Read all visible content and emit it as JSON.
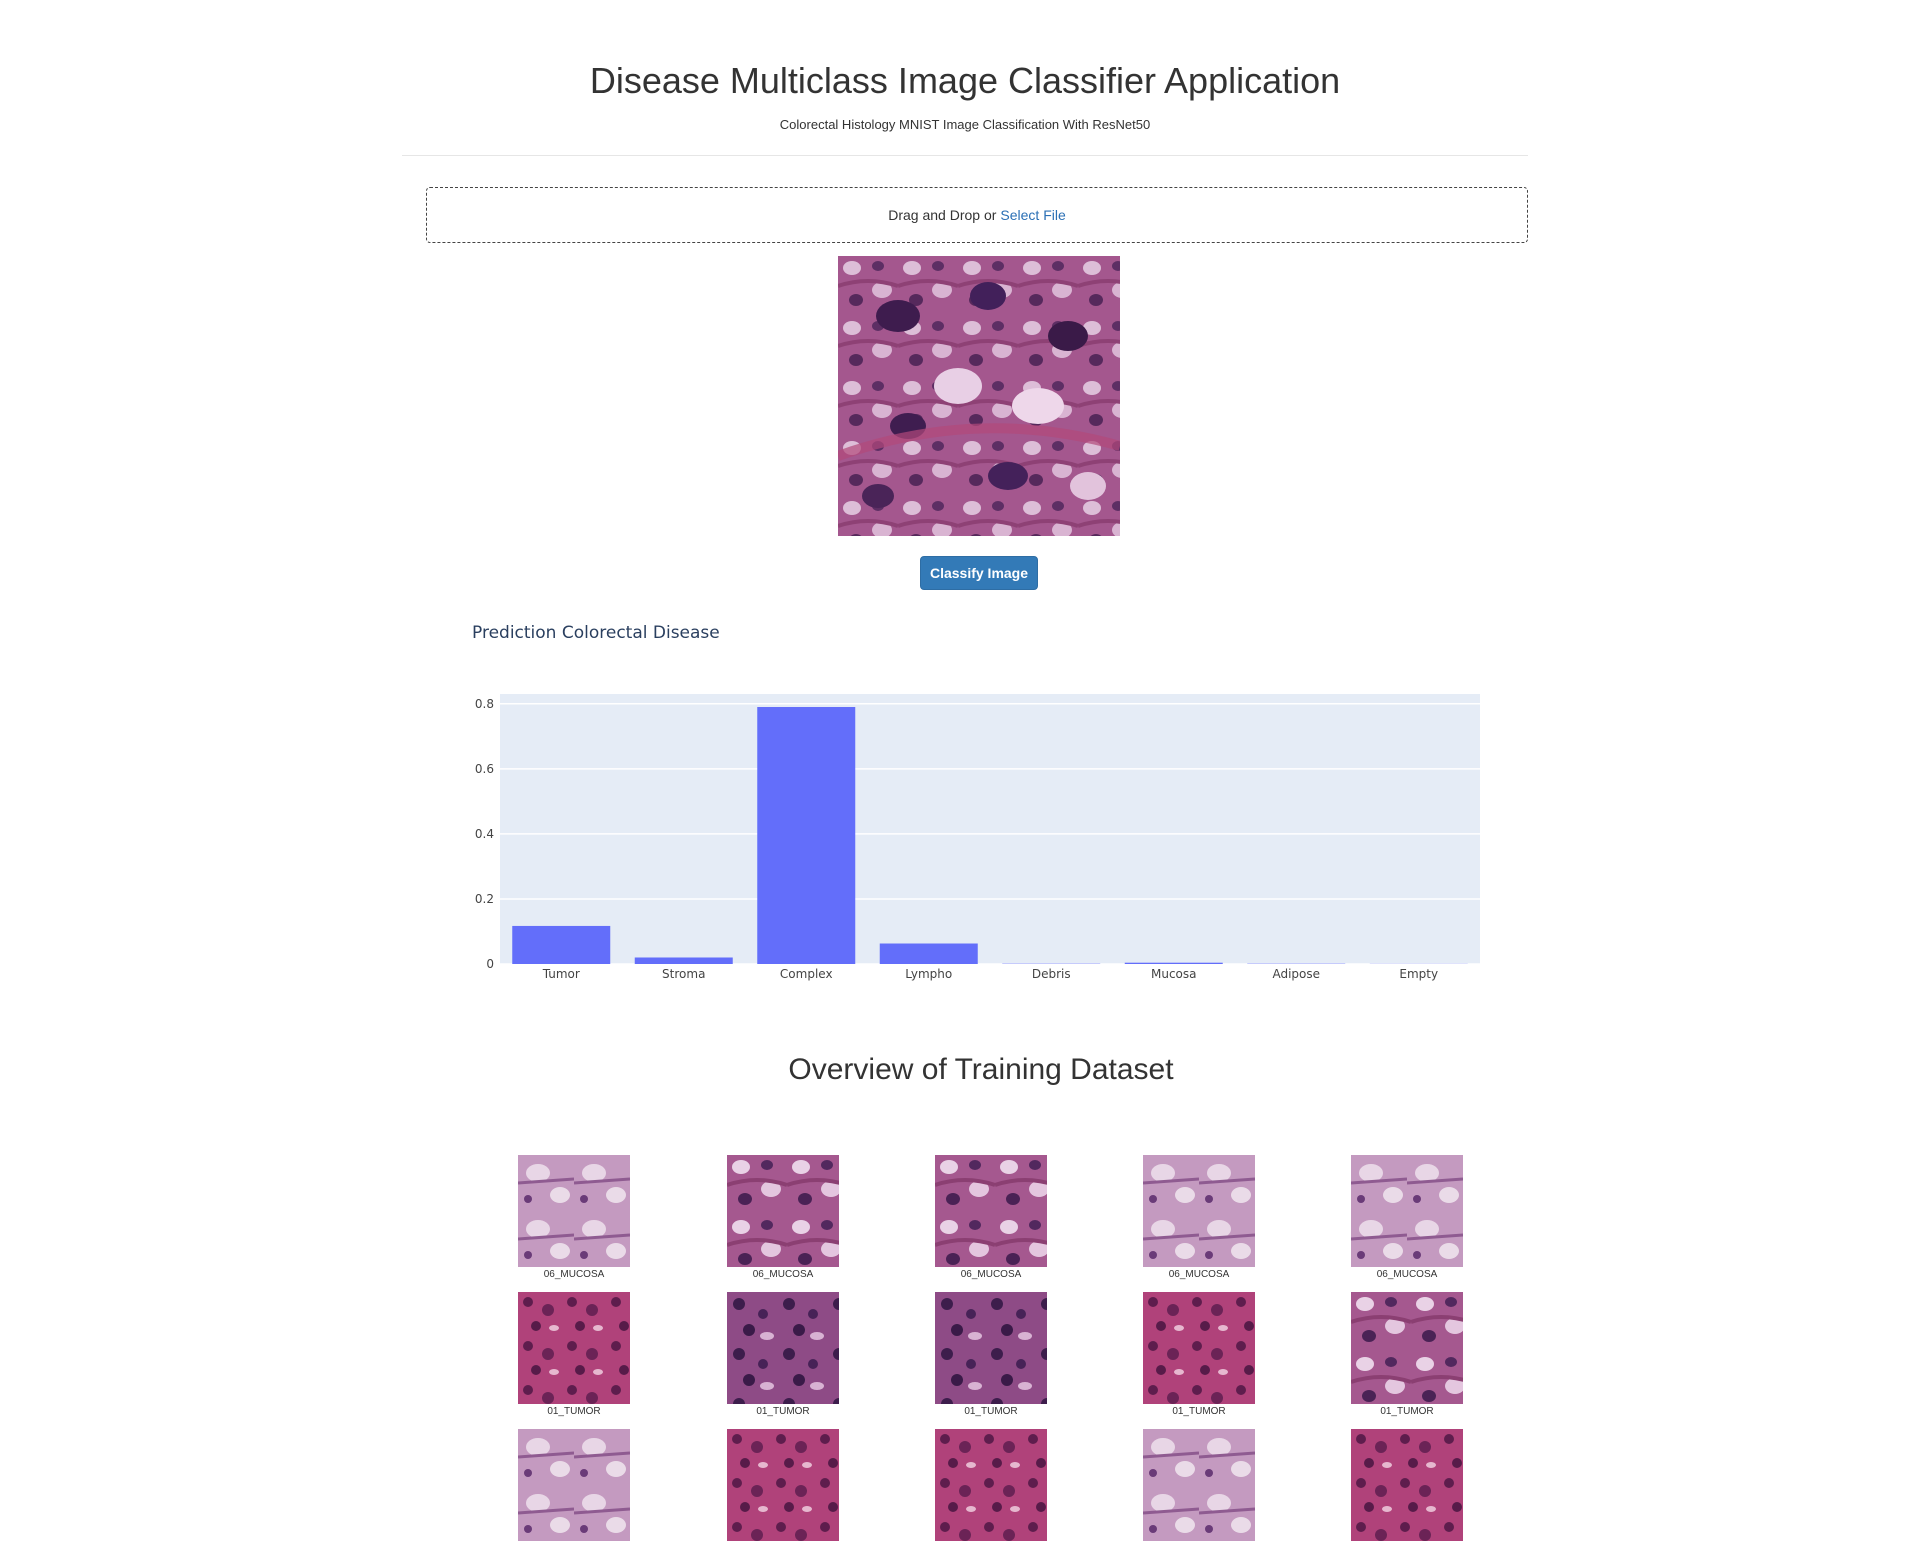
{
  "header": {
    "title": "Disease Multiclass Image Classifier Application",
    "subtitle": "Colorectal Histology MNIST Image Classification With ResNet50"
  },
  "upload": {
    "text": "Drag and Drop or",
    "link": "Select File"
  },
  "classify_button": "Classify Image",
  "prediction": {
    "title": "Prediction Colorectal Disease"
  },
  "colors": {
    "bar": "#636efa",
    "plot_bg": "#e5ecf6",
    "button": "#337ab7",
    "link": "#2a6fb5"
  },
  "chart_data": {
    "type": "bar",
    "title": "Prediction Colorectal Disease",
    "categories": [
      "Tumor",
      "Stroma",
      "Complex",
      "Lympho",
      "Debris",
      "Mucosa",
      "Adipose",
      "Empty"
    ],
    "values": [
      0.117,
      0.02,
      0.79,
      0.063,
      0.001,
      0.004,
      0.001,
      0.0005
    ],
    "ylim": [
      0,
      0.83
    ],
    "yticks": [
      0,
      0.2,
      0.4,
      0.6,
      0.8
    ],
    "ytick_labels": [
      "0",
      "0.2",
      "0.4",
      "0.6",
      "0.8"
    ],
    "grid": true,
    "legend": "none"
  },
  "dataset": {
    "title": "Overview of Training Dataset",
    "rows": [
      [
        "06_MUCOSA",
        "06_MUCOSA",
        "06_MUCOSA",
        "06_MUCOSA",
        "06_MUCOSA"
      ],
      [
        "01_TUMOR",
        "01_TUMOR",
        "01_TUMOR",
        "01_TUMOR",
        "01_TUMOR"
      ],
      [
        "",
        "",
        "",
        "",
        ""
      ]
    ]
  }
}
